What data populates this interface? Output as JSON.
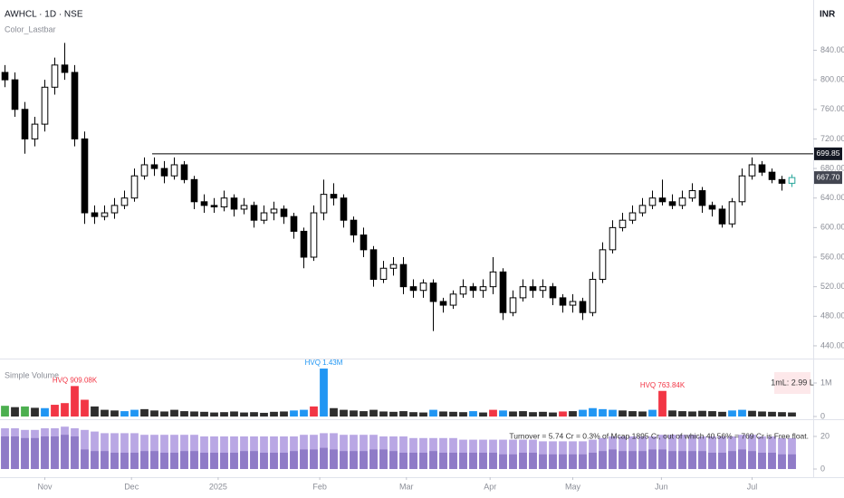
{
  "chart_data": [
    {
      "type": "candlestick",
      "title": "AWHCL · 1D · NSE",
      "subtitle": "Color_Lastbar",
      "currency": "INR",
      "open": [
        810,
        800,
        760,
        720,
        740,
        790,
        820,
        810,
        720,
        620,
        615,
        620,
        630,
        640,
        670,
        685,
        680,
        670,
        685,
        665,
        635,
        630,
        628,
        640,
        625,
        630,
        610,
        620,
        625,
        615,
        595,
        560,
        620,
        645,
        640,
        610,
        590,
        570,
        530,
        545,
        550,
        520,
        515,
        525,
        500,
        495,
        510,
        520,
        515,
        520,
        540,
        485,
        505,
        520,
        515,
        520,
        505,
        495,
        500,
        485,
        530,
        570,
        600,
        610,
        620,
        630,
        640,
        635,
        630,
        640,
        650,
        630,
        625,
        605,
        635,
        670,
        685,
        675,
        665,
        660
      ],
      "high": [
        820,
        810,
        770,
        750,
        800,
        830,
        850,
        820,
        730,
        630,
        630,
        640,
        650,
        680,
        695,
        695,
        690,
        695,
        690,
        670,
        645,
        640,
        650,
        645,
        640,
        635,
        630,
        635,
        630,
        620,
        600,
        630,
        665,
        660,
        645,
        615,
        600,
        575,
        555,
        560,
        560,
        530,
        530,
        530,
        505,
        515,
        530,
        525,
        530,
        560,
        545,
        515,
        530,
        530,
        530,
        525,
        510,
        510,
        505,
        540,
        580,
        610,
        620,
        630,
        640,
        650,
        665,
        645,
        650,
        660,
        655,
        635,
        630,
        640,
        680,
        695,
        690,
        680,
        670,
        672
      ],
      "low": [
        790,
        750,
        700,
        710,
        730,
        780,
        800,
        710,
        605,
        605,
        610,
        612,
        625,
        635,
        665,
        670,
        660,
        665,
        660,
        625,
        620,
        620,
        622,
        615,
        618,
        600,
        605,
        610,
        605,
        585,
        545,
        555,
        610,
        630,
        600,
        580,
        560,
        520,
        525,
        535,
        510,
        505,
        505,
        460,
        485,
        490,
        505,
        505,
        505,
        510,
        475,
        480,
        500,
        505,
        505,
        495,
        485,
        485,
        475,
        480,
        525,
        565,
        595,
        605,
        615,
        625,
        630,
        625,
        625,
        635,
        620,
        615,
        600,
        600,
        630,
        665,
        670,
        660,
        650,
        655
      ],
      "close": [
        800,
        760,
        720,
        740,
        790,
        820,
        810,
        720,
        620,
        615,
        620,
        630,
        640,
        670,
        685,
        680,
        670,
        685,
        665,
        635,
        630,
        628,
        640,
        625,
        630,
        610,
        620,
        625,
        615,
        595,
        560,
        620,
        645,
        640,
        610,
        590,
        570,
        530,
        545,
        550,
        520,
        515,
        525,
        500,
        495,
        510,
        520,
        515,
        520,
        540,
        485,
        505,
        520,
        515,
        520,
        505,
        495,
        500,
        485,
        530,
        570,
        600,
        610,
        620,
        630,
        640,
        635,
        630,
        640,
        650,
        630,
        625,
        605,
        635,
        670,
        685,
        675,
        665,
        660,
        667.7
      ],
      "last_price_label": "667.70",
      "hline": 699.85,
      "up_color": "#ffffff",
      "down_color": "#000000",
      "last_color": "#26a69a",
      "xlim": [
        0,
        80
      ],
      "ylim": [
        424,
        908
      ],
      "yticks": [
        {
          "value": 440,
          "label": "440.00"
        },
        {
          "value": 480,
          "label": "480.00"
        },
        {
          "value": 520,
          "label": "520.00"
        },
        {
          "value": 560,
          "label": "560.00"
        },
        {
          "value": 600,
          "label": "600.00"
        },
        {
          "value": 640,
          "label": "640.00"
        },
        {
          "value": 680,
          "label": "680.00"
        },
        {
          "value": 720,
          "label": "720.00"
        },
        {
          "value": 760,
          "label": "760.00"
        },
        {
          "value": 800,
          "label": "800.00"
        },
        {
          "value": 840,
          "label": "840.00"
        }
      ],
      "xticks": [
        {
          "value": 4.5,
          "label": "Nov"
        },
        {
          "value": 13.2,
          "label": "Dec"
        },
        {
          "value": 21.9,
          "label": "2025"
        },
        {
          "value": 32.1,
          "label": "Feb"
        },
        {
          "value": 40.8,
          "label": "Mar"
        },
        {
          "value": 49.2,
          "label": "Apr"
        },
        {
          "value": 57.5,
          "label": "May"
        },
        {
          "value": 66.4,
          "label": "Jun"
        },
        {
          "value": 75.5,
          "label": "Jul"
        }
      ]
    },
    {
      "type": "bar",
      "title": "Simple Volume",
      "annotation": "1mL: 2.99 L",
      "values": [
        320000,
        280000,
        300000,
        260000,
        250000,
        350000,
        400000,
        909080,
        500000,
        300000,
        200000,
        180000,
        160000,
        200000,
        220000,
        180000,
        150000,
        200000,
        160000,
        150000,
        140000,
        120000,
        130000,
        150000,
        120000,
        130000,
        110000,
        140000,
        150000,
        180000,
        200000,
        300000,
        1430000,
        250000,
        200000,
        180000,
        160000,
        200000,
        150000,
        140000,
        160000,
        130000,
        120000,
        200000,
        150000,
        140000,
        130000,
        160000,
        120000,
        200000,
        180000,
        150000,
        160000,
        130000,
        140000,
        120000,
        150000,
        160000,
        200000,
        250000,
        220000,
        200000,
        180000,
        160000,
        150000,
        200000,
        763840,
        180000,
        160000,
        150000,
        170000,
        160000,
        140000,
        180000,
        200000,
        170000,
        150000,
        140000,
        130000,
        120000
      ],
      "value_labels": [
        null,
        null,
        null,
        null,
        null,
        null,
        null,
        "HVQ 909.08K",
        null,
        null,
        null,
        null,
        null,
        null,
        null,
        null,
        null,
        null,
        null,
        null,
        null,
        null,
        null,
        null,
        null,
        null,
        null,
        null,
        null,
        null,
        null,
        null,
        "HVQ 1.43M",
        null,
        null,
        null,
        null,
        null,
        null,
        null,
        null,
        null,
        null,
        null,
        null,
        null,
        null,
        null,
        null,
        null,
        null,
        null,
        null,
        null,
        null,
        null,
        null,
        null,
        null,
        null,
        null,
        null,
        null,
        null,
        null,
        null,
        "HVQ 763.84K",
        null,
        null,
        null,
        null,
        null,
        null,
        null,
        null,
        null,
        null,
        null,
        null,
        null
      ],
      "colors": [
        "#4caf50",
        "#2e2e2e",
        "#4caf50",
        "#2e2e2e",
        "#2196f3",
        "#f23645",
        "#f23645",
        "#f23645",
        "#f23645",
        "#2e2e2e",
        "#2e2e2e",
        "#2e2e2e",
        "#2196f3",
        "#2196f3",
        "#2e2e2e",
        "#2e2e2e",
        "#2e2e2e",
        "#2e2e2e",
        "#2e2e2e",
        "#2e2e2e",
        "#2e2e2e",
        "#2e2e2e",
        "#2e2e2e",
        "#2e2e2e",
        "#2e2e2e",
        "#2e2e2e",
        "#2e2e2e",
        "#2e2e2e",
        "#2e2e2e",
        "#2196f3",
        "#2196f3",
        "#f23645",
        "#2196f3",
        "#2e2e2e",
        "#2e2e2e",
        "#2e2e2e",
        "#2e2e2e",
        "#2e2e2e",
        "#2e2e2e",
        "#2e2e2e",
        "#2e2e2e",
        "#2e2e2e",
        "#2e2e2e",
        "#2196f3",
        "#2e2e2e",
        "#2e2e2e",
        "#2e2e2e",
        "#2196f3",
        "#2e2e2e",
        "#f23645",
        "#2196f3",
        "#2e2e2e",
        "#2e2e2e",
        "#2e2e2e",
        "#2e2e2e",
        "#2e2e2e",
        "#f23645",
        "#2e2e2e",
        "#2196f3",
        "#2196f3",
        "#2196f3",
        "#2196f3",
        "#2e2e2e",
        "#2e2e2e",
        "#2e2e2e",
        "#2196f3",
        "#f23645",
        "#2e2e2e",
        "#2e2e2e",
        "#2e2e2e",
        "#2e2e2e",
        "#2e2e2e",
        "#2e2e2e",
        "#2196f3",
        "#2196f3",
        "#2e2e2e",
        "#2e2e2e",
        "#2e2e2e",
        "#2e2e2e",
        "#2e2e2e"
      ],
      "ylim": [
        0,
        1400000
      ],
      "yticks": [
        {
          "value": 1000000,
          "label": "1M"
        },
        0
      ]
    },
    {
      "type": "bar",
      "annotation": "Turnover = 5.74 Cr = 0.3% of Mcap 1895 Cr, out of which 40.56% = 769 Cr is Free float.",
      "series": [
        {
          "color": "#b9a7e4",
          "values": [
            25,
            25,
            24,
            24,
            25,
            25,
            26,
            25,
            24,
            23,
            22,
            22,
            22,
            22,
            21,
            21,
            21,
            21,
            21,
            21,
            20,
            20,
            20,
            20,
            20,
            20,
            20,
            20,
            20,
            20,
            21,
            21,
            22,
            22,
            21,
            21,
            21,
            21,
            20,
            20,
            20,
            19,
            19,
            19,
            19,
            19,
            18,
            18,
            18,
            18,
            18,
            18,
            18,
            18,
            17,
            17,
            17,
            17,
            17,
            18,
            19,
            20,
            20,
            20,
            20,
            20,
            21,
            21,
            21,
            21,
            20,
            20,
            20,
            20,
            21,
            21,
            20,
            20,
            19,
            19
          ]
        },
        {
          "color": "#8f7bc7",
          "values": [
            20,
            20,
            19,
            19,
            20,
            20,
            21,
            20,
            12,
            11,
            11,
            10,
            10,
            10,
            11,
            11,
            10,
            10,
            11,
            11,
            10,
            10,
            10,
            10,
            11,
            11,
            10,
            10,
            10,
            11,
            12,
            12,
            13,
            12,
            11,
            11,
            11,
            12,
            12,
            11,
            10,
            10,
            10,
            11,
            10,
            10,
            10,
            10,
            10,
            10,
            9,
            9,
            10,
            10,
            9,
            9,
            9,
            9,
            9,
            10,
            11,
            12,
            11,
            11,
            11,
            12,
            12,
            11,
            11,
            11,
            11,
            10,
            10,
            11,
            12,
            11,
            10,
            10,
            9,
            9
          ]
        }
      ],
      "ylim": [
        0,
        26
      ],
      "yticks": [
        20,
        0
      ]
    }
  ]
}
